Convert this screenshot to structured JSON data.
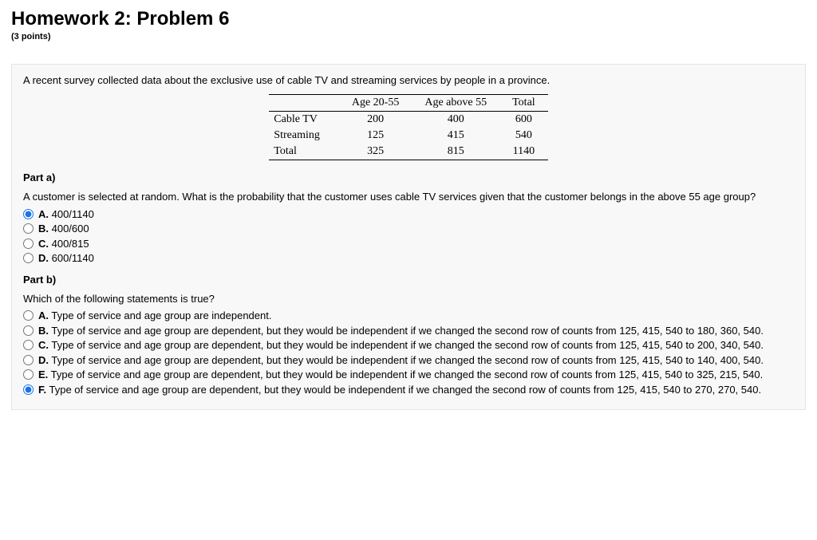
{
  "header": {
    "title": "Homework 2: Problem 6",
    "points": "(3 points)"
  },
  "intro": "A recent survey collected data about the exclusive use of cable TV and streaming services by people in a province.",
  "table": {
    "col_headers": [
      "",
      "Age 20-55",
      "Age above 55",
      "Total"
    ],
    "rows": [
      {
        "label": "Cable TV",
        "c1": "200",
        "c2": "400",
        "c3": "600"
      },
      {
        "label": "Streaming",
        "c1": "125",
        "c2": "415",
        "c3": "540"
      },
      {
        "label": "Total",
        "c1": "325",
        "c2": "815",
        "c3": "1140"
      }
    ]
  },
  "part_a": {
    "title": "Part a)",
    "question": "A customer is selected at random. What is the probability that the customer uses cable TV services given that the customer belongs in the above 55 age group?",
    "options": [
      {
        "letter": "A.",
        "text": " 400/1140",
        "selected": true
      },
      {
        "letter": "B.",
        "text": " 400/600",
        "selected": false
      },
      {
        "letter": "C.",
        "text": " 400/815",
        "selected": false
      },
      {
        "letter": "D.",
        "text": " 600/1140",
        "selected": false
      }
    ]
  },
  "part_b": {
    "title": "Part b)",
    "question": "Which of the following statements is true?",
    "options": [
      {
        "letter": "A.",
        "text": " Type of service and age group are independent.",
        "selected": false
      },
      {
        "letter": "B.",
        "text": " Type of service and age group are dependent, but they would be independent if we changed the second row of counts from 125, 415, 540 to 180, 360, 540.",
        "selected": false
      },
      {
        "letter": "C.",
        "text": " Type of service and age group are dependent, but they would be independent if we changed the second row of counts from 125, 415, 540 to 200, 340, 540.",
        "selected": false
      },
      {
        "letter": "D.",
        "text": " Type of service and age group are dependent, but they would be independent if we changed the second row of counts from 125, 415, 540 to 140, 400, 540.",
        "selected": false
      },
      {
        "letter": "E.",
        "text": " Type of service and age group are dependent, but they would be independent if we changed the second row of counts from 125, 415, 540 to 325, 215, 540.",
        "selected": false
      },
      {
        "letter": "F.",
        "text": " Type of service and age group are dependent, but they would be independent if we changed the second row of counts from 125, 415, 540 to 270, 270, 540.",
        "selected": true
      }
    ]
  }
}
